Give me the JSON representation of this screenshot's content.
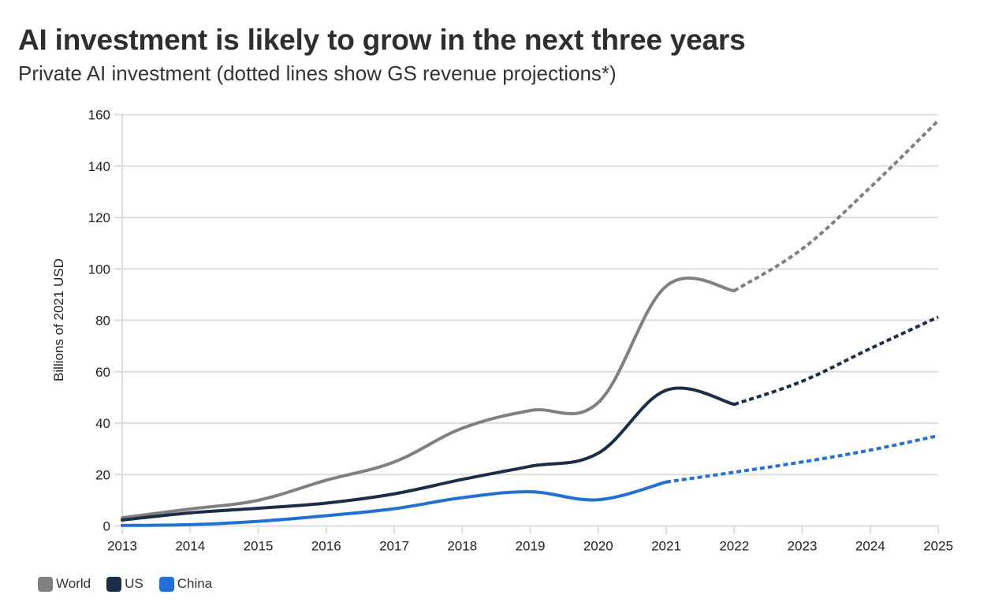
{
  "header": {
    "title": "AI investment is likely to grow in the next three years",
    "subtitle": "Private AI investment (dotted lines show GS revenue projections*)"
  },
  "chart_data": {
    "type": "line",
    "title": "AI investment is likely to grow in the next three years",
    "subtitle": "Private AI investment (dotted lines show GS revenue projections*)",
    "xlabel": "",
    "ylabel": "Billions of 2021 USD",
    "x": [
      2013,
      2014,
      2015,
      2016,
      2017,
      2018,
      2019,
      2020,
      2021,
      2022,
      2023,
      2024,
      2025
    ],
    "xticks": [
      "2013",
      "2014",
      "2015",
      "2016",
      "2017",
      "2018",
      "2019",
      "2020",
      "2021",
      "2022",
      "2023",
      "2024",
      "2025"
    ],
    "ylim": [
      0,
      160
    ],
    "yticks": [
      0,
      20,
      40,
      60,
      80,
      100,
      120,
      140,
      160
    ],
    "grid": true,
    "legend_position": "bottom-left",
    "series": [
      {
        "name": "World",
        "color": "#808080",
        "values": [
          3.2,
          6.6,
          10.0,
          17.8,
          24.9,
          38.0,
          44.9,
          48.0,
          93.3,
          91.5,
          107.8,
          131.7,
          157.7
        ],
        "projection_from": 2022
      },
      {
        "name": "US",
        "color": "#1b2e48",
        "values": [
          2.3,
          5.1,
          6.9,
          8.9,
          12.5,
          18.1,
          23.2,
          28.3,
          52.8,
          47.3,
          56.3,
          69.0,
          81.3
        ],
        "projection_from": 2022
      },
      {
        "name": "China",
        "color": "#2270d6",
        "values": [
          0.2,
          0.5,
          1.8,
          4.0,
          6.7,
          11.0,
          13.3,
          10.2,
          17.1,
          20.9,
          24.9,
          29.5,
          35.1
        ],
        "projection_from": 2021
      }
    ]
  },
  "legend": [
    {
      "label": "World",
      "color": "#808080"
    },
    {
      "label": "US",
      "color": "#1b2e48"
    },
    {
      "label": "China",
      "color": "#2270d6"
    }
  ]
}
